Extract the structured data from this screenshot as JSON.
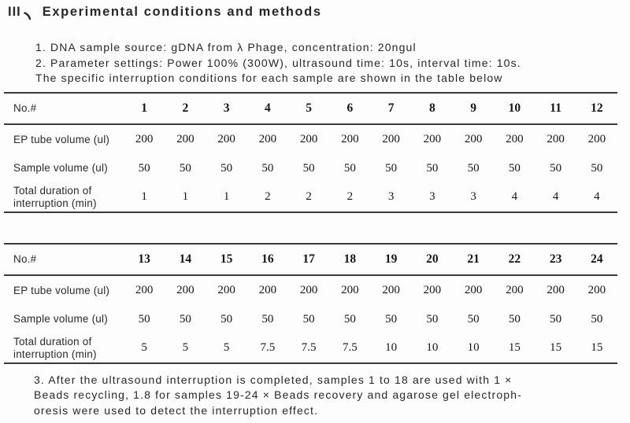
{
  "page": {
    "background": "#fdfdfd",
    "text_color": "#272727",
    "rule_color": "#3a3a3a"
  },
  "title": {
    "numeral": "III",
    "separator": "、",
    "text": "Experimental conditions and methods"
  },
  "intro": {
    "lines": [
      "1. DNA sample source: gDNA from λ Phage, concentration: 20ngul",
      "2. Parameter settings: Power 100% (300W), ultrasound time: 10s, interval time: 10s.",
      "The specific interruption conditions for each sample are shown in the table below"
    ]
  },
  "tables": [
    {
      "corner_label": "No.#",
      "columns": [
        "1",
        "2",
        "3",
        "4",
        "5",
        "6",
        "7",
        "8",
        "9",
        "10",
        "11",
        "12"
      ],
      "rows": [
        {
          "label": "EP tube volume (ul)",
          "values": [
            "200",
            "200",
            "200",
            "200",
            "200",
            "200",
            "200",
            "200",
            "200",
            "200",
            "200",
            "200"
          ]
        },
        {
          "label": "Sample volume (ul)",
          "values": [
            "50",
            "50",
            "50",
            "50",
            "50",
            "50",
            "50",
            "50",
            "50",
            "50",
            "50",
            "50"
          ]
        },
        {
          "label": "Total duration of interruption (min)",
          "values": [
            "1",
            "1",
            "1",
            "2",
            "2",
            "2",
            "3",
            "3",
            "3",
            "4",
            "4",
            "4"
          ]
        }
      ]
    },
    {
      "corner_label": "No.#",
      "columns": [
        "13",
        "14",
        "15",
        "16",
        "17",
        "18",
        "19",
        "20",
        "21",
        "22",
        "23",
        "24"
      ],
      "rows": [
        {
          "label": "EP tube volume (ul)",
          "values": [
            "200",
            "200",
            "200",
            "200",
            "200",
            "200",
            "200",
            "200",
            "200",
            "200",
            "200",
            "200"
          ]
        },
        {
          "label": "Sample volume (ul)",
          "values": [
            "50",
            "50",
            "50",
            "50",
            "50",
            "50",
            "50",
            "50",
            "50",
            "50",
            "50",
            "50"
          ]
        },
        {
          "label": "Total duration of interruption (min)",
          "values": [
            "5",
            "5",
            "5",
            "7.5",
            "7.5",
            "7.5",
            "10",
            "10",
            "10",
            "15",
            "15",
            "15"
          ]
        }
      ]
    }
  ],
  "footnote": {
    "lines": [
      "3. After the ultrasound interruption is completed, samples 1 to 18 are used with 1 ×",
      "Beads recycling, 1.8 for samples 19-24 ×  Beads recovery and agarose gel electroph-",
      "oresis were used to detect the interruption effect."
    ]
  }
}
